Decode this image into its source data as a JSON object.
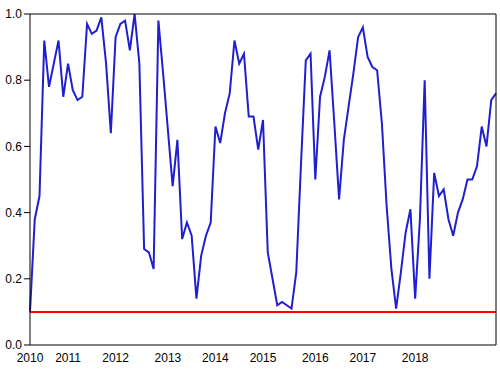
{
  "chart_data": {
    "type": "line",
    "categories": [
      "2010",
      null,
      null,
      null,
      null,
      null,
      null,
      null,
      "2011",
      null,
      null,
      null,
      null,
      null,
      null,
      null,
      null,
      null,
      "2012",
      null,
      null,
      null,
      null,
      null,
      null,
      null,
      null,
      null,
      null,
      "2013",
      null,
      null,
      null,
      null,
      null,
      null,
      null,
      null,
      null,
      "2014",
      null,
      null,
      null,
      null,
      null,
      null,
      null,
      null,
      null,
      "2015",
      null,
      null,
      null,
      null,
      null,
      null,
      null,
      null,
      null,
      null,
      "2016",
      null,
      null,
      null,
      null,
      null,
      null,
      null,
      null,
      null,
      "2017",
      null,
      null,
      null,
      null,
      null,
      null,
      null,
      null,
      null,
      null,
      "2018",
      null,
      null,
      null,
      null,
      null,
      null,
      null,
      null,
      null,
      null,
      null,
      null,
      null,
      null,
      null,
      null,
      null
    ],
    "series": [
      {
        "color": "#1f1fcf",
        "values": [
          0.1,
          0.38,
          0.45,
          0.92,
          0.78,
          0.85,
          0.92,
          0.75,
          0.85,
          0.77,
          0.74,
          0.75,
          0.97,
          0.94,
          0.95,
          0.99,
          0.85,
          0.64,
          0.93,
          0.97,
          0.98,
          0.89,
          1.0,
          0.85,
          0.29,
          0.28,
          0.23,
          0.98,
          0.82,
          0.65,
          0.48,
          0.62,
          0.32,
          0.37,
          0.33,
          0.14,
          0.27,
          0.33,
          0.37,
          0.66,
          0.61,
          0.7,
          0.76,
          0.92,
          0.85,
          0.88,
          0.69,
          0.69,
          0.59,
          0.68,
          0.28,
          0.2,
          0.12,
          0.13,
          0.12,
          0.11,
          0.22,
          0.55,
          0.86,
          0.88,
          0.5,
          0.75,
          0.81,
          0.89,
          0.67,
          0.44,
          0.62,
          0.72,
          0.82,
          0.93,
          0.96,
          0.87,
          0.84,
          0.83,
          0.67,
          0.42,
          0.23,
          0.11,
          0.22,
          0.34,
          0.41,
          0.14,
          0.38,
          0.8,
          0.2,
          0.52,
          0.45,
          0.47,
          0.38,
          0.33,
          0.4,
          0.44,
          0.5,
          0.5,
          0.54,
          0.66,
          0.6,
          0.74,
          0.76
        ]
      },
      {
        "color": "#ff0000",
        "values": [
          0.1,
          0.1,
          0.1,
          0.1,
          0.1,
          0.1,
          0.1,
          0.1,
          0.1,
          0.1,
          0.1,
          0.1,
          0.1,
          0.1,
          0.1,
          0.1,
          0.1,
          0.1,
          0.1,
          0.1,
          0.1,
          0.1,
          0.1,
          0.1,
          0.1,
          0.1,
          0.1,
          0.1,
          0.1,
          0.1,
          0.1,
          0.1,
          0.1,
          0.1,
          0.1,
          0.1,
          0.1,
          0.1,
          0.1,
          0.1,
          0.1,
          0.1,
          0.1,
          0.1,
          0.1,
          0.1,
          0.1,
          0.1,
          0.1,
          0.1,
          0.1,
          0.1,
          0.1,
          0.1,
          0.1,
          0.1,
          0.1,
          0.1,
          0.1,
          0.1,
          0.1,
          0.1,
          0.1,
          0.1,
          0.1,
          0.1,
          0.1,
          0.1,
          0.1,
          0.1,
          0.1,
          0.1,
          0.1,
          0.1,
          0.1,
          0.1,
          0.1,
          0.1,
          0.1,
          0.1,
          0.1,
          0.1,
          0.1,
          0.1,
          0.1,
          0.1,
          0.1,
          0.1,
          0.1,
          0.1,
          0.1,
          0.1,
          0.1,
          0.1,
          0.1,
          0.1,
          0.1,
          0.1,
          0.1
        ]
      }
    ],
    "ylim": [
      0,
      1
    ],
    "yticks": [
      {
        "value": 0,
        "label": "0.0"
      },
      0.2,
      0.4,
      0.6,
      0.8,
      {
        "value": 1,
        "label": "1.0"
      }
    ]
  }
}
